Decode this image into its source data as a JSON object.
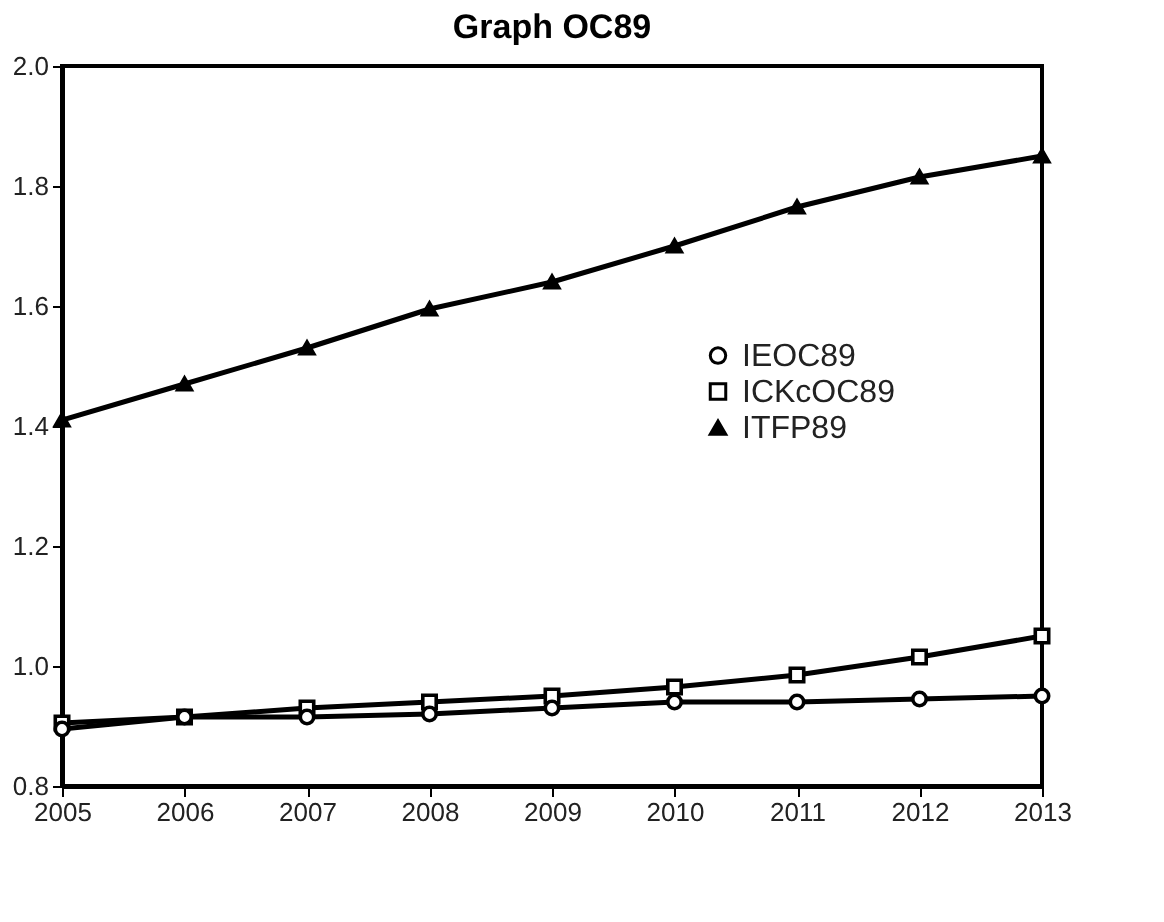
{
  "chart_data": {
    "type": "line",
    "title": "Graph OC89",
    "x": [
      2005,
      2006,
      2007,
      2008,
      2009,
      2010,
      2011,
      2012,
      2013
    ],
    "series": [
      {
        "name": "IEOC89",
        "color": "#000000",
        "marker": "circle",
        "values": [
          0.895,
          0.915,
          0.915,
          0.92,
          0.93,
          0.94,
          0.94,
          0.945,
          0.95
        ]
      },
      {
        "name": "ICKcOC89",
        "color": "#000000",
        "marker": "square",
        "values": [
          0.905,
          0.915,
          0.93,
          0.94,
          0.95,
          0.965,
          0.985,
          1.015,
          1.05
        ]
      },
      {
        "name": "ITFP89",
        "color": "#000000",
        "marker": "triangle",
        "values": [
          1.41,
          1.47,
          1.53,
          1.595,
          1.64,
          1.7,
          1.765,
          1.815,
          1.85
        ]
      }
    ],
    "xlim": [
      2005,
      2013
    ],
    "xticks": [
      2005,
      2006,
      2007,
      2008,
      2009,
      2010,
      2011,
      2012,
      2013
    ],
    "ylim": [
      0.8,
      2.0
    ],
    "yticks": [
      0.8,
      {
        "value": 1.0,
        "label": "1.0"
      },
      1.2,
      1.4,
      1.6,
      1.8,
      {
        "value": 2.0,
        "label": "2.0"
      }
    ],
    "grid": false,
    "legend": "right",
    "line_style": "solid"
  }
}
